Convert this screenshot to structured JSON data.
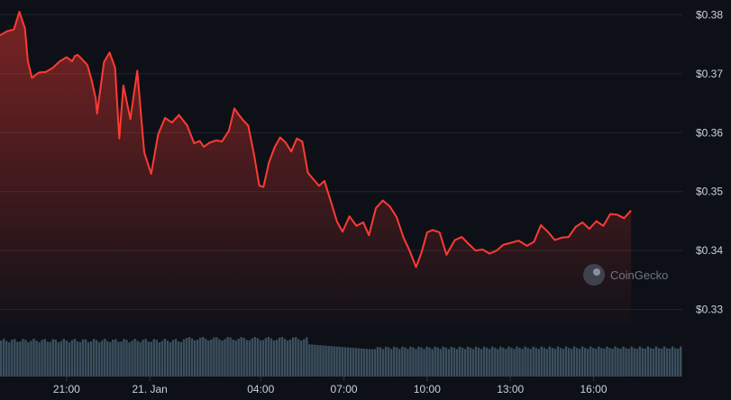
{
  "chart_data": {
    "type": "area",
    "title": "",
    "xlabel": "",
    "ylabel": "",
    "ylim": [
      0.3275,
      0.3825
    ],
    "y_ticks": [
      {
        "value": 0.38,
        "label": "$0.38"
      },
      {
        "value": 0.37,
        "label": "$0.37"
      },
      {
        "value": 0.36,
        "label": "$0.36"
      },
      {
        "value": 0.35,
        "label": "$0.35"
      },
      {
        "value": 0.34,
        "label": "$0.34"
      },
      {
        "value": 0.33,
        "label": "$0.33"
      }
    ],
    "x_range_hours": [
      18.6,
      43.2
    ],
    "x_ticks": [
      {
        "value": 21,
        "label": "21:00"
      },
      {
        "value": 24,
        "label": "21. Jan"
      },
      {
        "value": 28,
        "label": "04:00"
      },
      {
        "value": 31,
        "label": "07:00"
      },
      {
        "value": 34,
        "label": "10:00"
      },
      {
        "value": 37,
        "label": "13:00"
      },
      {
        "value": 40,
        "label": "16:00"
      }
    ],
    "grid": true,
    "legend": "none",
    "series": [
      {
        "color": "#ff3a33",
        "x": [
          18.6,
          18.85,
          19.1,
          19.3,
          19.5,
          19.6,
          19.75,
          20.0,
          20.25,
          20.5,
          20.75,
          21.0,
          21.2,
          21.3,
          21.4,
          21.55,
          21.75,
          21.9,
          22.05,
          22.1,
          22.2,
          22.35,
          22.55,
          22.75,
          22.9,
          23.05,
          23.3,
          23.55,
          23.8,
          24.05,
          24.3,
          24.55,
          24.8,
          25.05,
          25.35,
          25.6,
          25.8,
          25.95,
          26.15,
          26.4,
          26.6,
          26.85,
          27.05,
          27.2,
          27.35,
          27.55,
          27.75,
          27.95,
          28.1,
          28.3,
          28.5,
          28.7,
          28.9,
          29.1,
          29.3,
          29.5,
          29.7,
          29.9,
          30.1,
          30.3,
          30.55,
          30.75,
          30.95,
          31.2,
          31.45,
          31.7,
          31.9,
          32.15,
          32.4,
          32.65,
          32.9,
          33.15,
          33.35,
          33.6,
          33.8,
          34.0,
          34.2,
          34.45,
          34.7,
          35.0,
          35.25,
          35.5,
          35.75,
          36.0,
          36.25,
          36.5,
          36.75,
          37.0,
          37.3,
          37.6,
          37.85,
          38.1,
          38.35,
          38.6,
          38.85,
          39.1,
          39.35,
          39.6,
          39.85,
          40.1,
          40.35,
          40.6,
          40.85,
          41.1,
          41.35
        ],
        "values": [
          0.3765,
          0.3772,
          0.3775,
          0.3805,
          0.3777,
          0.3722,
          0.3693,
          0.3702,
          0.3703,
          0.371,
          0.3721,
          0.3728,
          0.3721,
          0.373,
          0.3732,
          0.3725,
          0.3715,
          0.369,
          0.3658,
          0.3632,
          0.3668,
          0.372,
          0.3736,
          0.371,
          0.359,
          0.368,
          0.3623,
          0.3705,
          0.3567,
          0.353,
          0.3597,
          0.3625,
          0.3617,
          0.363,
          0.3612,
          0.3582,
          0.3586,
          0.3576,
          0.3583,
          0.3587,
          0.3585,
          0.3603,
          0.3641,
          0.3631,
          0.3622,
          0.3612,
          0.3565,
          0.351,
          0.3508,
          0.355,
          0.3575,
          0.3592,
          0.3583,
          0.3568,
          0.359,
          0.3585,
          0.3532,
          0.3521,
          0.351,
          0.3518,
          0.348,
          0.3449,
          0.3432,
          0.3458,
          0.3442,
          0.3448,
          0.3426,
          0.3472,
          0.3485,
          0.3475,
          0.3457,
          0.3422,
          0.3402,
          0.3372,
          0.3397,
          0.3431,
          0.3435,
          0.3431,
          0.3393,
          0.3418,
          0.3423,
          0.3411,
          0.34,
          0.3402,
          0.3395,
          0.34,
          0.341,
          0.3413,
          0.3417,
          0.3408,
          0.3415,
          0.3443,
          0.3432,
          0.3418,
          0.3422,
          0.3423,
          0.344,
          0.3448,
          0.3437,
          0.345,
          0.3442,
          0.3462,
          0.3461,
          0.3455,
          0.3468
        ]
      }
    ],
    "volume": {
      "color": "#3b4f5e"
    }
  },
  "watermark": {
    "label": "CoinGecko"
  }
}
